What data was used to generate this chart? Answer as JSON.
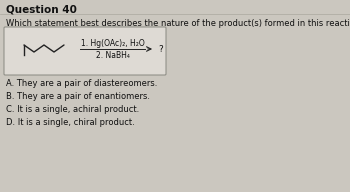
{
  "title": "Question 40",
  "question": "Which statement best describes the nature of the product(s) formed in this reaction?",
  "reagent1": "1. Hg(OAc)₂, H₂O",
  "reagent2": "2. NaBH₄",
  "arrow_label": "?",
  "choices": [
    "A. They are a pair of diastereomers.",
    "B. They are a pair of enantiomers.",
    "C. It is a single, achiral product.",
    "D. It is a single, chiral product."
  ],
  "bg_color": "#cbc7bf",
  "box_bg": "#dedad4",
  "box_edge": "#888880",
  "text_color": "#111111",
  "mol_color": "#222222",
  "title_fontsize": 7.5,
  "question_fontsize": 6.0,
  "choice_fontsize": 6.0,
  "reagent_fontsize": 5.5,
  "arrow_fontsize": 6.5
}
